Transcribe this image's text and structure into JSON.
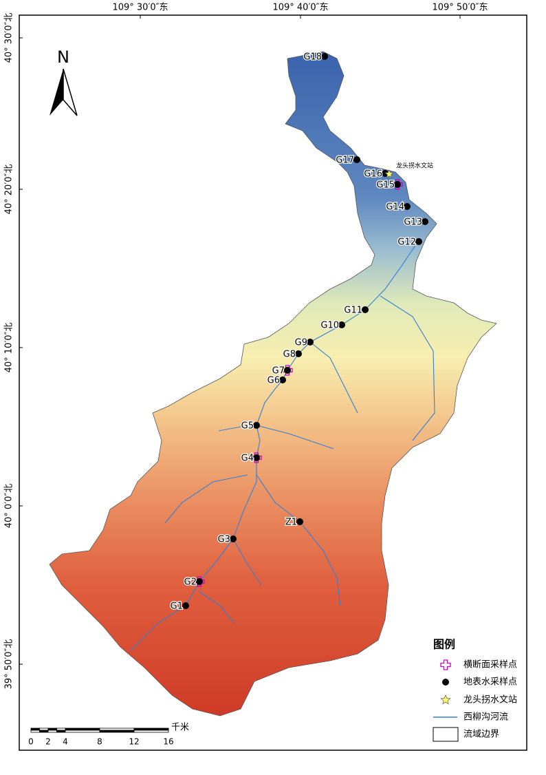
{
  "coordinates": {
    "longitude": [
      "109° 30′0″东",
      "109° 40′0″东",
      "109° 50′0″东"
    ],
    "latitude": [
      "40° 30′0″北",
      "40° 20′0″北",
      "40° 10′0″北",
      "40° 0′0″北",
      "39° 50′0″北"
    ]
  },
  "north_arrow": "N",
  "sites": [
    "G18",
    "G17",
    "G16",
    "G15",
    "G14",
    "G13",
    "G12",
    "G11",
    "G10",
    "G9",
    "G8",
    "G7",
    "G6",
    "G5",
    "G4",
    "Z1",
    "G3",
    "G2",
    "G1"
  ],
  "station": "龙头拐水文站",
  "legend": {
    "title": "图例",
    "items": [
      "横断面采样点",
      "地表水采样点",
      "龙头拐水文站",
      "西柳沟河流",
      "流域边界"
    ]
  },
  "scale_bar": {
    "ticks": [
      0,
      2,
      4,
      8,
      12,
      16
    ],
    "unit": "千米"
  }
}
